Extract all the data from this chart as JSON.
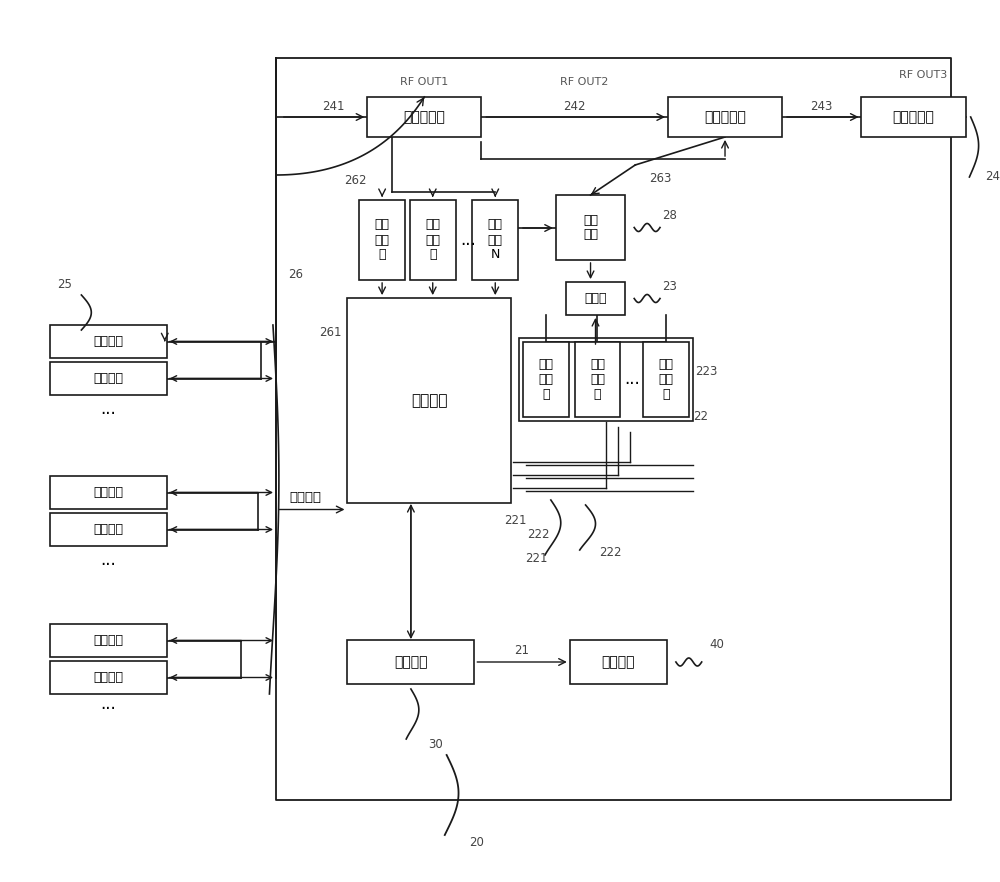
{
  "bg": "#ffffff",
  "lc": "#1a1a1a",
  "labels": {
    "mux1": "第一复用器",
    "mux2": "第二复用器",
    "mux3": "第三复用器",
    "rx1": "接收\n电路\n一",
    "rx2": "接收\n电路\n二",
    "rxN": "接收\n电路\nN",
    "amp": "放大\n电路",
    "mod": "调制器",
    "sig": "信号\n发生\n器",
    "rw": "读写模块",
    "cc": "控制中心",
    "ext": "外部设备",
    "ant": "调频天线",
    "ctrl": "控制信号",
    "rfout1": "RF OUT1",
    "rfout2": "RF OUT2",
    "rfout3": "RF OUT3",
    "n241": "241",
    "n242": "242",
    "n243": "243",
    "n24": "24",
    "n25": "25",
    "n26": "26",
    "n261": "261",
    "n262": "262",
    "n263": "263",
    "n28": "28",
    "n23": "23",
    "n22": "22",
    "n221": "221",
    "n222": "222",
    "n223": "223",
    "n21": "21",
    "n30": "30",
    "n40": "40",
    "n20": "20"
  }
}
